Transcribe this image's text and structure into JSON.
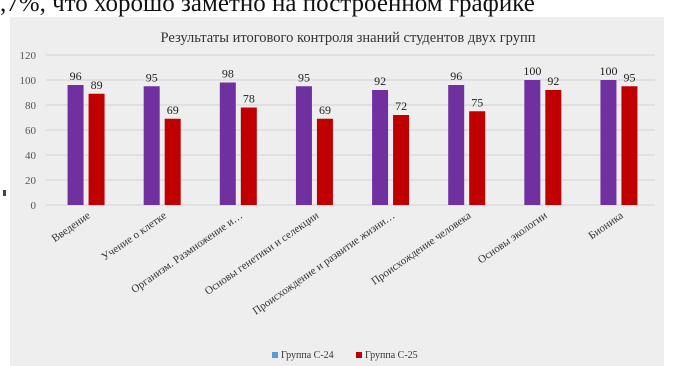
{
  "top_text": ",7%, что хорошо заметно на построенном графике",
  "chart_data": {
    "type": "bar",
    "title": "Результаты итогового контроля знаний студентов двух групп",
    "categories": [
      "Введение",
      "Учение о клетке",
      "Организм. Размножение и…",
      "Основы генетики и селекции",
      "Происхождение и развитие жизни…",
      "Происхождение человека",
      "Основы экологии",
      "Бионика"
    ],
    "series": [
      {
        "name": "Группа С-24",
        "color": "#7030a0",
        "legend_color": "#5b9bd5",
        "values": [
          96,
          95,
          98,
          95,
          92,
          96,
          100,
          100
        ]
      },
      {
        "name": "Группа С-25",
        "color": "#c00000",
        "legend_color": "#c00000",
        "values": [
          89,
          69,
          78,
          69,
          72,
          75,
          92,
          95
        ]
      }
    ],
    "yticks": [
      "0",
      "20",
      "40",
      "60",
      "80",
      "100",
      "120"
    ],
    "ylim": [
      0,
      120
    ],
    "grid": true,
    "legend": "bottom"
  }
}
